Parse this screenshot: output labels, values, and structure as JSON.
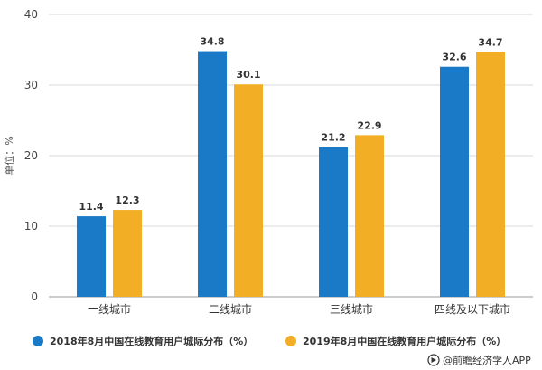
{
  "chart_data": {
    "type": "bar",
    "title": "",
    "xlabel": "",
    "ylabel": "单位：%",
    "categories": [
      "一线城市",
      "二线城市",
      "三线城市",
      "四线及以下城市"
    ],
    "ylim": [
      0,
      40
    ],
    "yticks": [
      0,
      10,
      20,
      30,
      40
    ],
    "grid": true,
    "legend_position": "bottom",
    "series": [
      {
        "name": "2018年8月中国在线教育用户城际分布（%）",
        "values": [
          11.4,
          34.8,
          21.2,
          32.6
        ],
        "value_labels": [
          "11.4",
          "34.8",
          "21.2",
          "32.6"
        ],
        "color": "#1a7ac7"
      },
      {
        "name": "2019年8月中国在线教育用户城际分布（%）",
        "values": [
          12.3,
          30.1,
          22.9,
          34.7
        ],
        "value_labels": [
          "12.3",
          "30.1",
          "22.9",
          "34.7"
        ],
        "color": "#f2ae25"
      }
    ]
  },
  "source": {
    "text": "@前瞻经济学人APP"
  }
}
